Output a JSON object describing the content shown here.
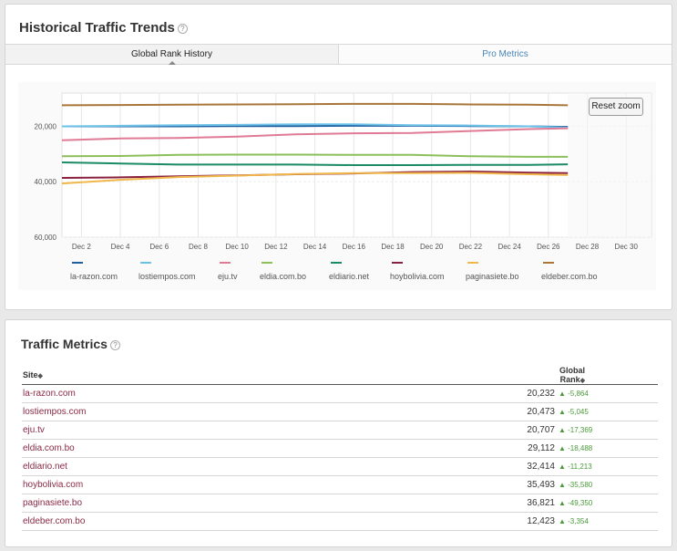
{
  "trends": {
    "title": "Historical Traffic Trends",
    "help": "?",
    "tabs": [
      {
        "label": "Global Rank History",
        "active": true
      },
      {
        "label": "Pro Metrics",
        "active": false
      }
    ],
    "reset_zoom": "Reset zoom"
  },
  "chart_data": {
    "type": "line",
    "y_reversed": true,
    "ylim": [
      8000,
      60000
    ],
    "yticks": [
      "20,000",
      "40,000",
      "60,000"
    ],
    "ytick_values": [
      20000,
      40000,
      60000
    ],
    "xticks": [
      "Dec 2",
      "Dec 4",
      "Dec 6",
      "Dec 8",
      "Dec 10",
      "Dec 12",
      "Dec 14",
      "Dec 16",
      "Dec 18",
      "Dec 20",
      "Dec 22",
      "Dec 24",
      "Dec 26",
      "Dec 28",
      "Dec 30"
    ],
    "xtick_values": [
      2,
      4,
      6,
      8,
      10,
      12,
      14,
      16,
      18,
      20,
      22,
      24,
      26,
      28,
      30
    ],
    "xlim": [
      1,
      31.3
    ],
    "grid": true,
    "x": [
      1,
      4,
      7,
      10,
      13,
      16,
      19,
      22,
      25,
      27
    ],
    "series": [
      {
        "name": "la-razon.com",
        "color": "#1f5fa0",
        "values": [
          20000,
          20000,
          20000,
          19900,
          19900,
          19800,
          19800,
          19900,
          20000,
          20200
        ]
      },
      {
        "name": "lostiempos.com",
        "color": "#6ec2e8",
        "values": [
          20000,
          19800,
          19600,
          19500,
          19300,
          19300,
          19600,
          19700,
          20000,
          20500
        ]
      },
      {
        "name": "eju.tv",
        "color": "#e07a95",
        "values": [
          25000,
          24400,
          24200,
          23700,
          22900,
          22500,
          22400,
          21700,
          21000,
          20700
        ]
      },
      {
        "name": "eldia.com.bo",
        "color": "#8bbf5a",
        "values": [
          30800,
          30700,
          30300,
          30200,
          30200,
          30300,
          30300,
          30800,
          31000,
          31000
        ]
      },
      {
        "name": "eldiario.net",
        "color": "#1b8a66",
        "values": [
          33000,
          33400,
          33800,
          33800,
          33800,
          34000,
          34000,
          33900,
          33900,
          33700
        ]
      },
      {
        "name": "hoybolivia.com",
        "color": "#8a2040",
        "values": [
          38600,
          38400,
          38000,
          37700,
          37300,
          37000,
          36500,
          36300,
          36700,
          36900
        ]
      },
      {
        "name": "paginasiete.bo",
        "color": "#f0b84a",
        "values": [
          40600,
          39300,
          38300,
          37800,
          37200,
          36900,
          36900,
          36800,
          37300,
          37600
        ]
      },
      {
        "name": "eldeber.com.bo",
        "color": "#a8763a",
        "values": [
          12400,
          12300,
          12200,
          12100,
          12000,
          11900,
          11900,
          12100,
          12200,
          12400
        ]
      }
    ]
  },
  "metrics": {
    "title": "Traffic Metrics",
    "help": "?",
    "col_site": "Site",
    "col_rank": "Global Rank",
    "sort_glyph": "◆",
    "rows": [
      {
        "site": "la-razon.com",
        "rank": "20,232",
        "change": "▲ -5,864"
      },
      {
        "site": "lostiempos.com",
        "rank": "20,473",
        "change": "▲ -5,045"
      },
      {
        "site": "eju.tv",
        "rank": "20,707",
        "change": "▲ -17,369"
      },
      {
        "site": "eldia.com.bo",
        "rank": "29,112",
        "change": "▲ -18,488"
      },
      {
        "site": "eldiario.net",
        "rank": "32,414",
        "change": "▲ -11,213"
      },
      {
        "site": "hoybolivia.com",
        "rank": "35,493",
        "change": "▲ -35,580"
      },
      {
        "site": "paginasiete.bo",
        "rank": "36,821",
        "change": "▲ -49,350"
      },
      {
        "site": "eldeber.com.bo",
        "rank": "12,423",
        "change": "▲ -3,354"
      }
    ]
  }
}
